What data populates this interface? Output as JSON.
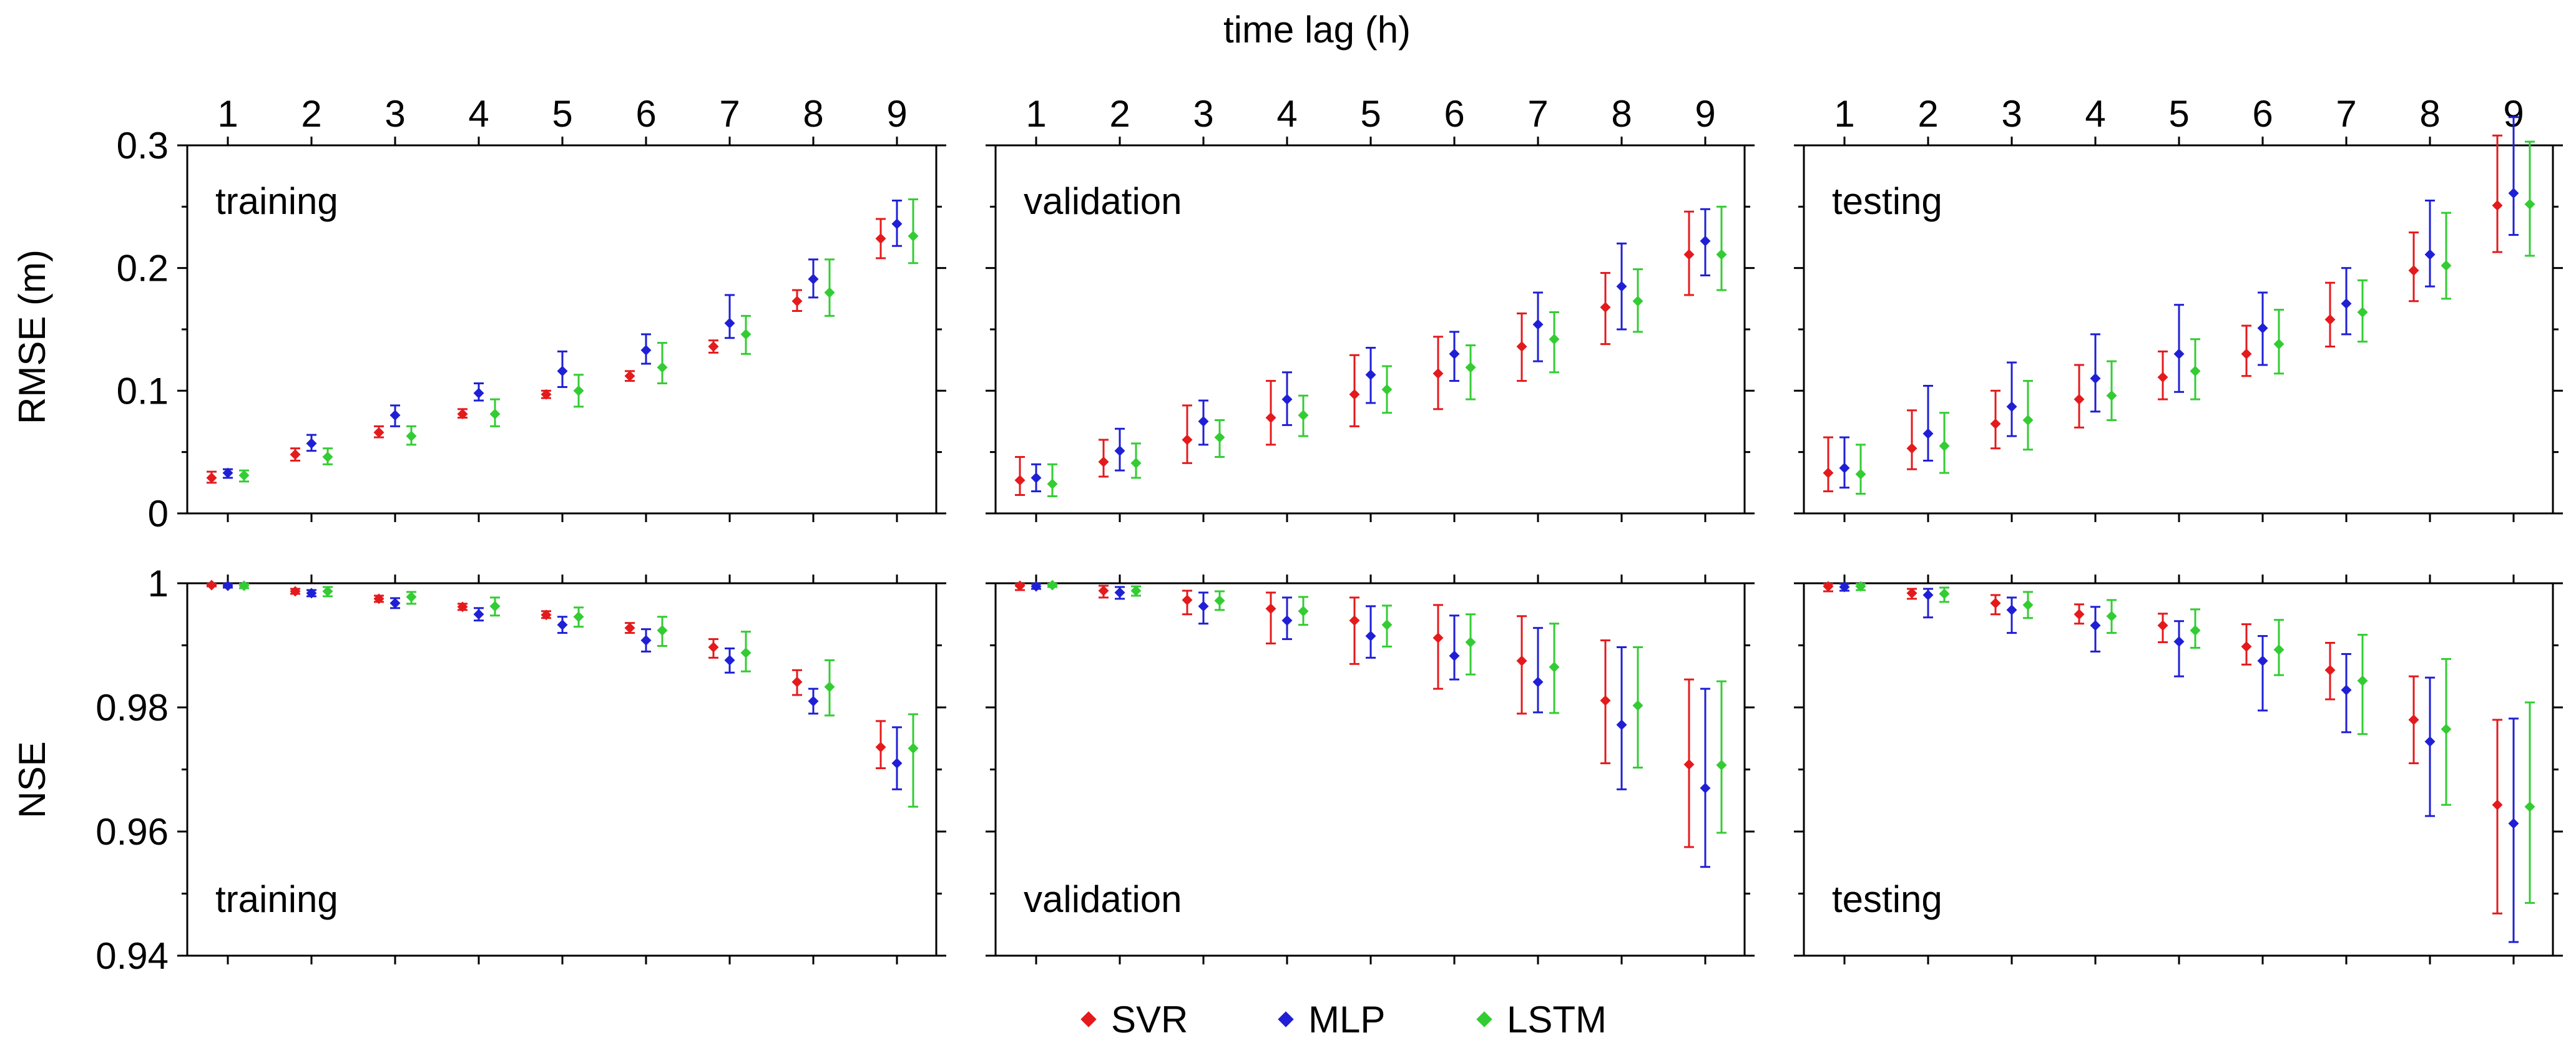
{
  "figure": {
    "top_label": "time lag (h)",
    "legend": [
      {
        "name": "SVR",
        "color": "#e41a1c"
      },
      {
        "name": "MLP",
        "color": "#1f1fd6"
      },
      {
        "name": "LSTM",
        "color": "#33cc33"
      }
    ]
  },
  "chart_data": [
    {
      "type": "scatter",
      "id": "rmse-training",
      "panel_label": "training",
      "row": "RMSE",
      "ylabel": "RMSE (m)",
      "xlabel": "time lag (h)",
      "x": [
        1,
        2,
        3,
        4,
        5,
        6,
        7,
        8,
        9
      ],
      "ylim": [
        0,
        0.3
      ],
      "yticks": [
        0,
        0.1,
        0.2,
        0.3
      ],
      "ytick_labels": [
        "0",
        "0.1",
        "0.2",
        "0.3"
      ],
      "series": [
        {
          "name": "SVR",
          "mean": [
            0.029,
            0.048,
            0.066,
            0.081,
            0.097,
            0.112,
            0.136,
            0.173,
            0.224
          ],
          "lower": [
            0.025,
            0.043,
            0.062,
            0.078,
            0.094,
            0.108,
            0.131,
            0.165,
            0.208
          ],
          "upper": [
            0.034,
            0.053,
            0.071,
            0.085,
            0.1,
            0.116,
            0.141,
            0.182,
            0.24
          ]
        },
        {
          "name": "MLP",
          "mean": [
            0.033,
            0.057,
            0.08,
            0.098,
            0.116,
            0.133,
            0.155,
            0.191,
            0.236
          ],
          "lower": [
            0.029,
            0.051,
            0.071,
            0.092,
            0.103,
            0.122,
            0.143,
            0.176,
            0.218
          ],
          "upper": [
            0.036,
            0.064,
            0.088,
            0.106,
            0.132,
            0.146,
            0.178,
            0.207,
            0.255
          ]
        },
        {
          "name": "LSTM",
          "mean": [
            0.031,
            0.046,
            0.063,
            0.081,
            0.1,
            0.119,
            0.146,
            0.18,
            0.226
          ],
          "lower": [
            0.026,
            0.04,
            0.056,
            0.071,
            0.087,
            0.106,
            0.13,
            0.161,
            0.204
          ],
          "upper": [
            0.035,
            0.053,
            0.071,
            0.093,
            0.113,
            0.139,
            0.161,
            0.207,
            0.256
          ]
        }
      ]
    },
    {
      "type": "scatter",
      "id": "rmse-validation",
      "panel_label": "validation",
      "row": "RMSE",
      "ylabel": "RMSE (m)",
      "xlabel": "time lag (h)",
      "x": [
        1,
        2,
        3,
        4,
        5,
        6,
        7,
        8,
        9
      ],
      "ylim": [
        0,
        0.3
      ],
      "yticks": [
        0,
        0.1,
        0.2,
        0.3
      ],
      "series": [
        {
          "name": "SVR",
          "mean": [
            0.027,
            0.042,
            0.06,
            0.078,
            0.097,
            0.114,
            0.136,
            0.168,
            0.211
          ],
          "lower": [
            0.015,
            0.03,
            0.041,
            0.056,
            0.071,
            0.085,
            0.108,
            0.138,
            0.178
          ],
          "upper": [
            0.046,
            0.06,
            0.088,
            0.108,
            0.129,
            0.144,
            0.163,
            0.196,
            0.246
          ]
        },
        {
          "name": "MLP",
          "mean": [
            0.029,
            0.051,
            0.075,
            0.093,
            0.113,
            0.13,
            0.154,
            0.185,
            0.222
          ],
          "lower": [
            0.018,
            0.035,
            0.056,
            0.072,
            0.09,
            0.108,
            0.124,
            0.15,
            0.194
          ],
          "upper": [
            0.04,
            0.069,
            0.092,
            0.115,
            0.135,
            0.148,
            0.18,
            0.22,
            0.248
          ]
        },
        {
          "name": "LSTM",
          "mean": [
            0.024,
            0.041,
            0.062,
            0.08,
            0.101,
            0.119,
            0.142,
            0.173,
            0.211
          ],
          "lower": [
            0.014,
            0.029,
            0.046,
            0.063,
            0.082,
            0.093,
            0.115,
            0.148,
            0.182
          ],
          "upper": [
            0.04,
            0.057,
            0.076,
            0.096,
            0.12,
            0.137,
            0.164,
            0.199,
            0.25
          ]
        }
      ]
    },
    {
      "type": "scatter",
      "id": "rmse-testing",
      "panel_label": "testing",
      "row": "RMSE",
      "ylabel": "RMSE (m)",
      "xlabel": "time lag (h)",
      "x": [
        1,
        2,
        3,
        4,
        5,
        6,
        7,
        8,
        9
      ],
      "ylim": [
        0,
        0.3
      ],
      "yticks": [
        0,
        0.1,
        0.2,
        0.3
      ],
      "series": [
        {
          "name": "SVR",
          "mean": [
            0.033,
            0.053,
            0.073,
            0.093,
            0.111,
            0.13,
            0.158,
            0.198,
            0.251
          ],
          "lower": [
            0.018,
            0.036,
            0.053,
            0.07,
            0.093,
            0.112,
            0.136,
            0.173,
            0.213
          ],
          "upper": [
            0.062,
            0.084,
            0.1,
            0.121,
            0.132,
            0.153,
            0.188,
            0.229,
            0.308
          ]
        },
        {
          "name": "MLP",
          "mean": [
            0.037,
            0.065,
            0.087,
            0.11,
            0.13,
            0.151,
            0.171,
            0.211,
            0.261
          ],
          "lower": [
            0.021,
            0.043,
            0.063,
            0.083,
            0.099,
            0.121,
            0.146,
            0.185,
            0.227
          ],
          "upper": [
            0.062,
            0.104,
            0.123,
            0.146,
            0.17,
            0.18,
            0.2,
            0.255,
            0.323
          ]
        },
        {
          "name": "LSTM",
          "mean": [
            0.032,
            0.055,
            0.076,
            0.096,
            0.116,
            0.138,
            0.164,
            0.202,
            0.252
          ],
          "lower": [
            0.016,
            0.033,
            0.052,
            0.076,
            0.093,
            0.114,
            0.14,
            0.175,
            0.21
          ],
          "upper": [
            0.056,
            0.082,
            0.108,
            0.124,
            0.142,
            0.166,
            0.19,
            0.245,
            0.303
          ]
        }
      ]
    },
    {
      "type": "scatter",
      "id": "nse-training",
      "panel_label": "training",
      "row": "NSE",
      "ylabel": "NSE",
      "xlabel": "time lag (h)",
      "x": [
        1,
        2,
        3,
        4,
        5,
        6,
        7,
        8,
        9
      ],
      "ylim": [
        0.94,
        1.0
      ],
      "yticks": [
        0.94,
        0.96,
        0.98,
        1.0
      ],
      "ytick_labels": [
        "0.94",
        "0.96",
        "0.98",
        "1"
      ],
      "series": [
        {
          "name": "SVR",
          "mean": [
            0.9997,
            0.9987,
            0.9975,
            0.9962,
            0.9949,
            0.9928,
            0.9897,
            0.9841,
            0.9736
          ],
          "lower": [
            0.9995,
            0.9983,
            0.997,
            0.9957,
            0.9944,
            0.992,
            0.988,
            0.982,
            0.9702
          ],
          "upper": [
            0.9999,
            0.9991,
            0.998,
            0.9967,
            0.9955,
            0.9936,
            0.991,
            0.986,
            0.9778
          ]
        },
        {
          "name": "MLP",
          "mean": [
            0.9996,
            0.9984,
            0.9968,
            0.995,
            0.9933,
            0.9908,
            0.9876,
            0.981,
            0.971
          ],
          "lower": [
            0.9993,
            0.9979,
            0.996,
            0.994,
            0.992,
            0.989,
            0.9856,
            0.979,
            0.9668
          ],
          "upper": [
            0.9999,
            0.9989,
            0.9976,
            0.996,
            0.9946,
            0.9926,
            0.9895,
            0.983,
            0.9768
          ]
        },
        {
          "name": "LSTM",
          "mean": [
            0.9996,
            0.9987,
            0.9978,
            0.9963,
            0.9946,
            0.9924,
            0.9888,
            0.9833,
            0.9734
          ],
          "lower": [
            0.9992,
            0.9979,
            0.9967,
            0.9948,
            0.993,
            0.9899,
            0.9858,
            0.9787,
            0.964
          ],
          "upper": [
            0.9999,
            0.9994,
            0.9986,
            0.9977,
            0.9961,
            0.9946,
            0.9922,
            0.9876,
            0.9789
          ]
        }
      ]
    },
    {
      "type": "scatter",
      "id": "nse-validation",
      "panel_label": "validation",
      "row": "NSE",
      "ylabel": "NSE",
      "xlabel": "time lag (h)",
      "x": [
        1,
        2,
        3,
        4,
        5,
        6,
        7,
        8,
        9
      ],
      "ylim": [
        0.94,
        1.0
      ],
      "yticks": [
        0.94,
        0.96,
        0.98,
        1.0
      ],
      "series": [
        {
          "name": "SVR",
          "mean": [
            0.9996,
            0.9988,
            0.9973,
            0.9959,
            0.994,
            0.9912,
            0.9875,
            0.9811,
            0.9708
          ],
          "lower": [
            0.9989,
            0.9977,
            0.995,
            0.9903,
            0.987,
            0.983,
            0.979,
            0.971,
            0.9575
          ],
          "upper": [
            0.9999,
            0.9996,
            0.9988,
            0.9985,
            0.9977,
            0.9965,
            0.9947,
            0.9908,
            0.9845
          ]
        },
        {
          "name": "MLP",
          "mean": [
            0.9995,
            0.9985,
            0.9963,
            0.994,
            0.9915,
            0.9883,
            0.9841,
            0.9772,
            0.967
          ],
          "lower": [
            0.9991,
            0.9975,
            0.9935,
            0.991,
            0.988,
            0.9845,
            0.9792,
            0.9668,
            0.9543
          ],
          "upper": [
            0.9999,
            0.9994,
            0.9985,
            0.9977,
            0.9963,
            0.9948,
            0.9928,
            0.9897,
            0.983
          ]
        },
        {
          "name": "LSTM",
          "mean": [
            0.9997,
            0.9988,
            0.9972,
            0.9955,
            0.9933,
            0.9905,
            0.9865,
            0.9803,
            0.9707
          ],
          "lower": [
            0.9994,
            0.998,
            0.9957,
            0.9933,
            0.9898,
            0.9853,
            0.9791,
            0.9703,
            0.9598
          ],
          "upper": [
            0.9999,
            0.9995,
            0.9987,
            0.9978,
            0.9964,
            0.995,
            0.9935,
            0.9897,
            0.9842
          ]
        }
      ]
    },
    {
      "type": "scatter",
      "id": "nse-testing",
      "panel_label": "testing",
      "row": "NSE",
      "ylabel": "NSE",
      "xlabel": "time lag (h)",
      "x": [
        1,
        2,
        3,
        4,
        5,
        6,
        7,
        8,
        9
      ],
      "ylim": [
        0.94,
        1.0
      ],
      "yticks": [
        0.94,
        0.96,
        0.98,
        1.0
      ],
      "series": [
        {
          "name": "SVR",
          "mean": [
            0.9995,
            0.9984,
            0.9968,
            0.995,
            0.9932,
            0.9898,
            0.986,
            0.978,
            0.9643
          ],
          "lower": [
            0.9987,
            0.9975,
            0.995,
            0.9935,
            0.9905,
            0.9869,
            0.9813,
            0.971,
            0.9468
          ],
          "upper": [
            0.9999,
            0.9991,
            0.9981,
            0.9966,
            0.9951,
            0.9934,
            0.9904,
            0.985,
            0.978
          ]
        },
        {
          "name": "MLP",
          "mean": [
            0.9994,
            0.9981,
            0.9957,
            0.9932,
            0.9906,
            0.9875,
            0.9828,
            0.9745,
            0.9613
          ],
          "lower": [
            0.9988,
            0.9945,
            0.992,
            0.989,
            0.985,
            0.9795,
            0.976,
            0.9625,
            0.9422
          ],
          "upper": [
            0.9999,
            0.9991,
            0.9977,
            0.9962,
            0.9939,
            0.9915,
            0.9886,
            0.9848,
            0.9782
          ]
        },
        {
          "name": "LSTM",
          "mean": [
            0.9995,
            0.9983,
            0.9965,
            0.9947,
            0.9924,
            0.9893,
            0.9843,
            0.9765,
            0.964
          ],
          "lower": [
            0.9989,
            0.997,
            0.9944,
            0.992,
            0.9896,
            0.9852,
            0.9757,
            0.9643,
            0.9485
          ],
          "upper": [
            0.9999,
            0.9993,
            0.9986,
            0.9973,
            0.9958,
            0.9941,
            0.9917,
            0.9878,
            0.9808
          ]
        }
      ]
    }
  ]
}
